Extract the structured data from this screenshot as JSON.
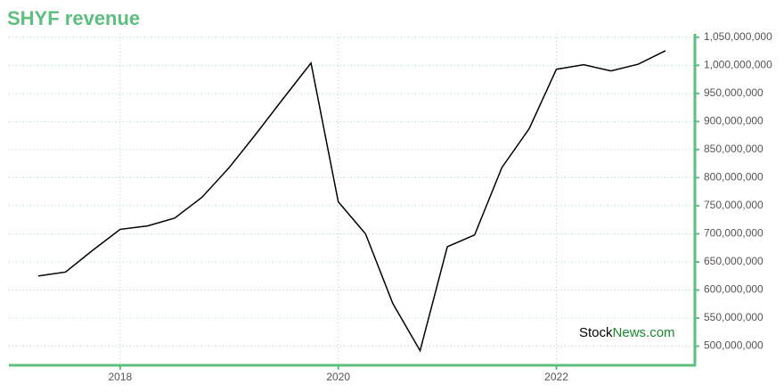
{
  "chart_data": {
    "type": "line",
    "title": "SHYF revenue",
    "x": [
      2017.25,
      2017.5,
      2017.75,
      2018.0,
      2018.25,
      2018.5,
      2018.75,
      2019.0,
      2019.25,
      2019.5,
      2019.75,
      2020.0,
      2020.25,
      2020.5,
      2020.75,
      2021.0,
      2021.25,
      2021.5,
      2021.75,
      2022.0,
      2022.25,
      2022.5,
      2022.75,
      2023.0
    ],
    "series": [
      {
        "name": "SHYF revenue",
        "color": "#000000",
        "values": [
          625000000,
          632000000,
          671000000,
          708000000,
          714000000,
          728000000,
          765000000,
          818000000,
          879000000,
          942000000,
          1004000000,
          757000000,
          700000000,
          576000000,
          492000000,
          677000000,
          698000000,
          818000000,
          887000000,
          993000000,
          1001000000,
          990000000,
          1002000000,
          1026000000
        ]
      }
    ],
    "xlim": [
      2016.98,
      2023.27
    ],
    "xticks": [
      2018,
      2020,
      2022
    ],
    "ylim": [
      466000000,
      1056000000
    ],
    "yticks": [
      {
        "value": 500000000,
        "label": "500,000,000"
      },
      {
        "value": 550000000,
        "label": "550,000,000"
      },
      {
        "value": 600000000,
        "label": "600,000,000"
      },
      {
        "value": 650000000,
        "label": "650,000,000"
      },
      {
        "value": 700000000,
        "label": "700,000,000"
      },
      {
        "value": 750000000,
        "label": "750,000,000"
      },
      {
        "value": 800000000,
        "label": "800,000,000"
      },
      {
        "value": 850000000,
        "label": "850,000,000"
      },
      {
        "value": 900000000,
        "label": "900,000,000"
      },
      {
        "value": 950000000,
        "label": "950,000,000"
      },
      {
        "value": 1000000000,
        "label": "1,000,000,000"
      },
      {
        "value": 1050000000,
        "label": "1,050,000,000"
      }
    ],
    "grid": true,
    "axis_color": "#5cbf7d",
    "watermark": [
      "Stock",
      "News.com"
    ]
  }
}
